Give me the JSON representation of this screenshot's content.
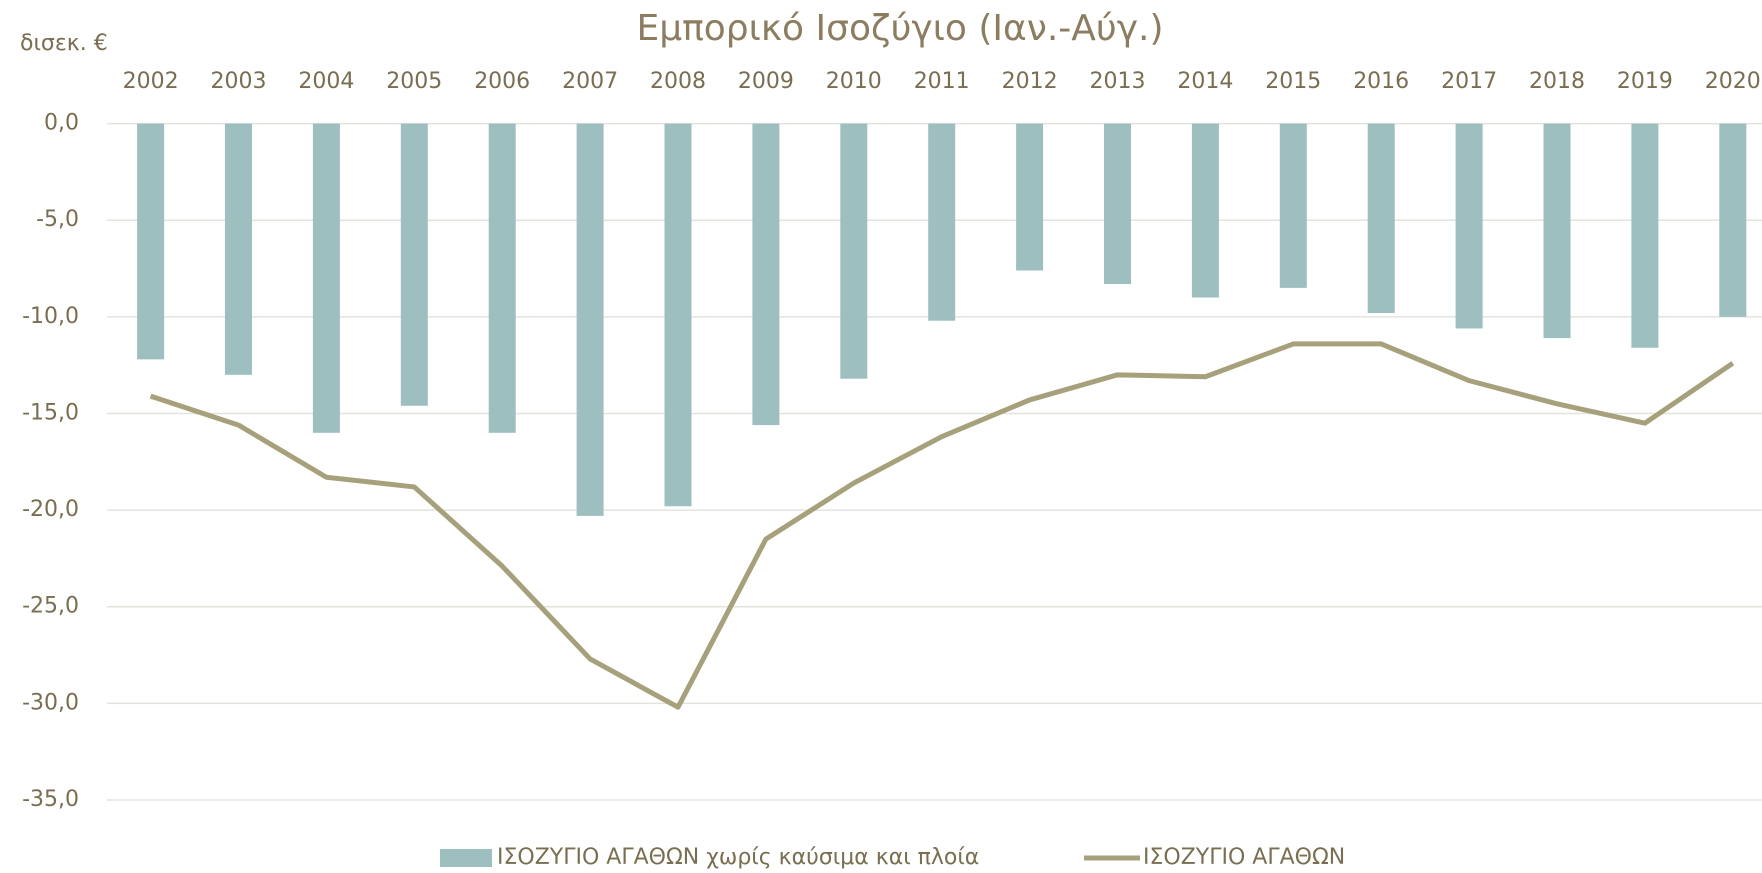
{
  "chart_data": {
    "type": "bar-line",
    "title": "Εμπορικό Ισοζύγιο (Ιαν.-Αύγ.)",
    "y_axis_label": "δισεκ. €",
    "categories": [
      "2002",
      "2003",
      "2004",
      "2005",
      "2006",
      "2007",
      "2008",
      "2009",
      "2010",
      "2011",
      "2012",
      "2013",
      "2014",
      "2015",
      "2016",
      "2017",
      "2018",
      "2019",
      "2020"
    ],
    "series": [
      {
        "name": "ΙΣΟΖΥΓΙΟ ΑΓΑΘΩΝ χωρίς καύσιμα και πλοία",
        "type": "bar",
        "color": "#9dbfbf",
        "values": [
          -12.2,
          -13.0,
          -16.0,
          -14.6,
          -16.0,
          -20.3,
          -19.8,
          -15.6,
          -13.2,
          -10.2,
          -7.6,
          -8.3,
          -9.0,
          -8.5,
          -9.8,
          -10.6,
          -11.1,
          -11.6,
          -10.0
        ]
      },
      {
        "name": "ΙΣΟΖΥΓΙΟ ΑΓΑΘΩΝ",
        "type": "line",
        "color": "#a6a17a",
        "values": [
          -14.1,
          -15.6,
          -18.3,
          -18.8,
          -22.9,
          -27.7,
          -30.2,
          -21.5,
          -18.6,
          -16.2,
          -14.3,
          -13.0,
          -13.1,
          -11.4,
          -11.4,
          -13.3,
          -14.5,
          -15.5,
          -12.4
        ]
      }
    ],
    "ylim": [
      -35,
      0
    ],
    "yticks": [
      {
        "value": 0,
        "label": "0,0"
      },
      {
        "value": -5,
        "label": "-5,0"
      },
      {
        "value": -10,
        "label": "-10,0"
      },
      {
        "value": -15,
        "label": "-15,0"
      },
      {
        "value": -20,
        "label": "-20,0"
      },
      {
        "value": -25,
        "label": "-25,0"
      },
      {
        "value": -30,
        "label": "-30,0"
      },
      {
        "value": -35,
        "label": "-35,0"
      }
    ],
    "grid": true,
    "x_axis_position": "top",
    "legend": "bottom"
  }
}
